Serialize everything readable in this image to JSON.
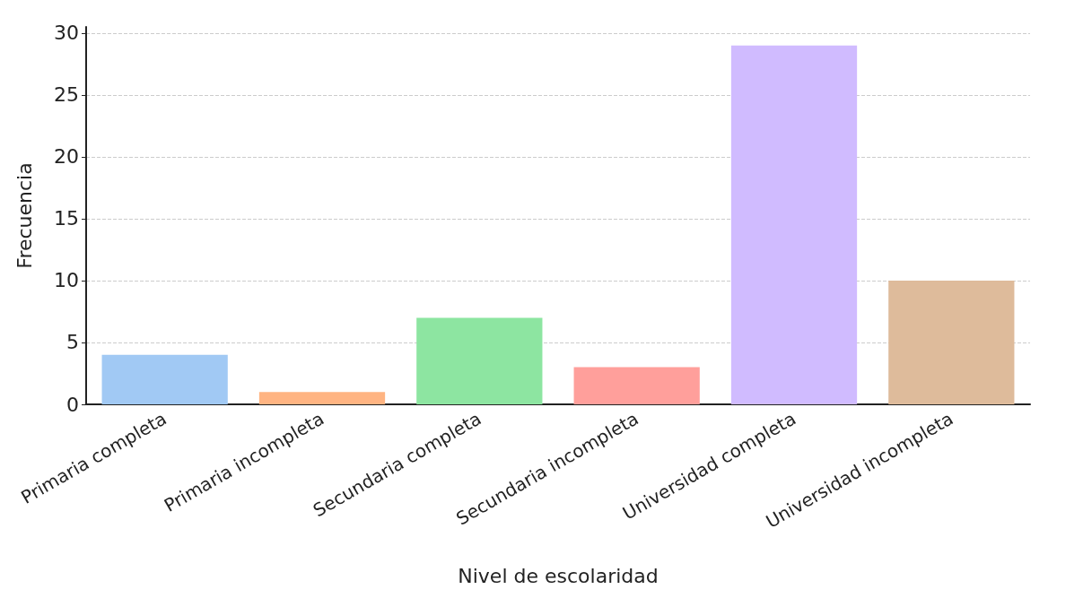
{
  "chart_data": {
    "type": "bar",
    "xlabel": "Nivel de escolaridad",
    "ylabel": "Frecuencia",
    "categories": [
      "Primaria completa",
      "Primaria incompleta",
      "Secundaria completa",
      "Secundaria incompleta",
      "Universidad completa",
      "Universidad incompleta"
    ],
    "values": [
      4,
      1,
      7,
      3,
      29,
      10
    ],
    "colors": [
      "#a1c9f4",
      "#ffb482",
      "#8de5a1",
      "#ff9f9b",
      "#d0bbff",
      "#debb9b"
    ],
    "ylim": [
      0,
      30.5
    ],
    "yticks": [
      0,
      5,
      10,
      15,
      20,
      25,
      30
    ],
    "grid": "y"
  }
}
